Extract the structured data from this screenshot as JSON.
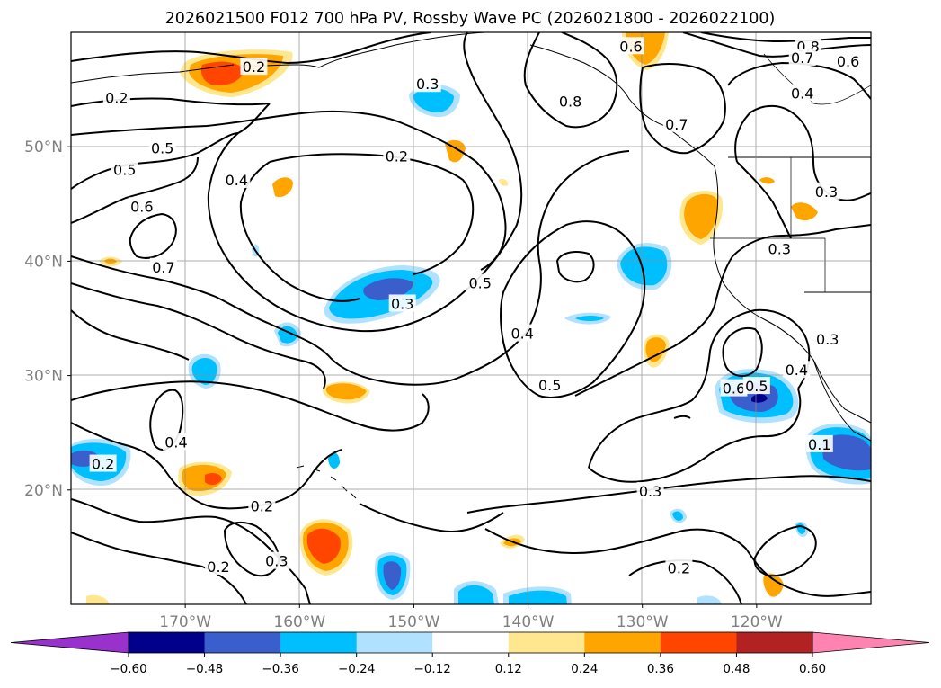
{
  "chart_data": {
    "type": "contour-map",
    "title": "2026021500 F012 700 hPa PV, Rossby Wave PC (2026021800 - 2026022100)",
    "projection": "PlateCarree",
    "lon_range": [
      -180,
      -110
    ],
    "lat_range": [
      10,
      60
    ],
    "x_ticks": [
      {
        "value": -170,
        "label": "170°W"
      },
      {
        "value": -160,
        "label": "160°W"
      },
      {
        "value": -150,
        "label": "150°W"
      },
      {
        "value": -140,
        "label": "140°W"
      },
      {
        "value": -130,
        "label": "130°W"
      },
      {
        "value": -120,
        "label": "120°W"
      }
    ],
    "y_ticks": [
      {
        "value": 50,
        "label": "50°N"
      },
      {
        "value": 40,
        "label": "40°N"
      },
      {
        "value": 30,
        "label": "30°N"
      },
      {
        "value": 20,
        "label": "20°N"
      }
    ],
    "colorbar": {
      "levels": [
        -0.6,
        -0.48,
        -0.36,
        -0.24,
        -0.12,
        0.12,
        0.24,
        0.36,
        0.48,
        0.6
      ],
      "tick_labels": [
        "−0.60",
        "−0.48",
        "−0.36",
        "−0.24",
        "−0.12",
        "0.12",
        "0.24",
        "0.36",
        "0.48",
        "0.60"
      ],
      "colors": [
        "#9932cc",
        "#00008b",
        "#3a5fcd",
        "#00bfff",
        "#b0e2ff",
        "#ffffff",
        "#ffe78f",
        "#ffa500",
        "#ff4500",
        "#b22222",
        "#ff83b0"
      ],
      "extend": "both"
    },
    "contour_labels": [
      {
        "text": "0.6",
        "lon": -131.0,
        "lat": 58.8
      },
      {
        "text": "0.8",
        "lon": -115.5,
        "lat": 58.8
      },
      {
        "text": "0.7",
        "lon": -116.0,
        "lat": 57.8
      },
      {
        "text": "0.6",
        "lon": -112.0,
        "lat": 57.5
      },
      {
        "text": "0.4",
        "lon": -116.0,
        "lat": 54.7
      },
      {
        "text": "0.3",
        "lon": -148.8,
        "lat": 55.5
      },
      {
        "text": "0.8",
        "lon": -136.3,
        "lat": 54.0
      },
      {
        "text": "0.2",
        "lon": -176.0,
        "lat": 54.3
      },
      {
        "text": "0.2",
        "lon": -164.0,
        "lat": 57.0
      },
      {
        "text": "0.5",
        "lon": -172.0,
        "lat": 49.9
      },
      {
        "text": "0.5",
        "lon": -175.3,
        "lat": 48.0
      },
      {
        "text": "0.6",
        "lon": -173.8,
        "lat": 44.8
      },
      {
        "text": "0.2",
        "lon": -151.5,
        "lat": 49.2
      },
      {
        "text": "0.4",
        "lon": -165.5,
        "lat": 47.1
      },
      {
        "text": "0.7",
        "lon": -127.0,
        "lat": 52.0
      },
      {
        "text": "0.3",
        "lon": -113.9,
        "lat": 46.1
      },
      {
        "text": "0.3",
        "lon": -118.0,
        "lat": 41.1
      },
      {
        "text": "0.7",
        "lon": -171.9,
        "lat": 39.5
      },
      {
        "text": "0.5",
        "lon": -144.2,
        "lat": 38.1
      },
      {
        "text": "0.3",
        "lon": -151.0,
        "lat": 36.3
      },
      {
        "text": "0.4",
        "lon": -140.5,
        "lat": 33.7
      },
      {
        "text": "0.3",
        "lon": -113.8,
        "lat": 33.2
      },
      {
        "text": "0.4",
        "lon": -116.5,
        "lat": 30.5
      },
      {
        "text": "0.6",
        "lon": -122.0,
        "lat": 28.9
      },
      {
        "text": "0.5",
        "lon": -120.0,
        "lat": 29.1
      },
      {
        "text": "0.5",
        "lon": -138.1,
        "lat": 29.2
      },
      {
        "text": "0.4",
        "lon": -170.8,
        "lat": 24.2
      },
      {
        "text": "0.2",
        "lon": -177.2,
        "lat": 22.3
      },
      {
        "text": "0.1",
        "lon": -114.5,
        "lat": 24.0
      },
      {
        "text": "0.3",
        "lon": -129.3,
        "lat": 19.9
      },
      {
        "text": "0.2",
        "lon": -163.3,
        "lat": 18.6
      },
      {
        "text": "0.3",
        "lon": -162.0,
        "lat": 13.8
      },
      {
        "text": "0.2",
        "lon": -167.1,
        "lat": 13.3
      },
      {
        "text": "0.2",
        "lon": -126.8,
        "lat": 13.2
      }
    ],
    "anomaly_regions": [
      {
        "sign": "positive",
        "lon": -165.5,
        "lat": 56.8,
        "level": 0.36
      },
      {
        "sign": "positive",
        "lon": -130.8,
        "lat": 59.0,
        "level": 0.24
      },
      {
        "sign": "positive",
        "lon": -125.0,
        "lat": 43.5,
        "level": 0.24
      },
      {
        "sign": "positive",
        "lon": -168.3,
        "lat": 20.9,
        "level": 0.36
      },
      {
        "sign": "positive",
        "lon": -157.0,
        "lat": 15.0,
        "level": 0.36
      },
      {
        "sign": "positive",
        "lon": -152.0,
        "lat": 28.7,
        "level": 0.24
      },
      {
        "sign": "positive",
        "lon": -131.0,
        "lat": 32.0,
        "level": 0.24
      },
      {
        "sign": "negative",
        "lon": -151.0,
        "lat": 37.3,
        "level": -0.48
      },
      {
        "sign": "negative",
        "lon": -129.0,
        "lat": 38.5,
        "level": -0.36
      },
      {
        "sign": "negative",
        "lon": -118.8,
        "lat": 27.8,
        "level": -0.48
      },
      {
        "sign": "negative",
        "lon": -113.0,
        "lat": 22.8,
        "level": -0.48
      },
      {
        "sign": "negative",
        "lon": -177.5,
        "lat": 22.5,
        "level": -0.36
      },
      {
        "sign": "negative",
        "lon": -148.8,
        "lat": 52.2,
        "level": -0.36
      },
      {
        "sign": "negative",
        "lon": -150.0,
        "lat": 12.5,
        "level": -0.48
      },
      {
        "sign": "negative",
        "lon": -169.0,
        "lat": 30.5,
        "level": -0.36
      }
    ]
  }
}
